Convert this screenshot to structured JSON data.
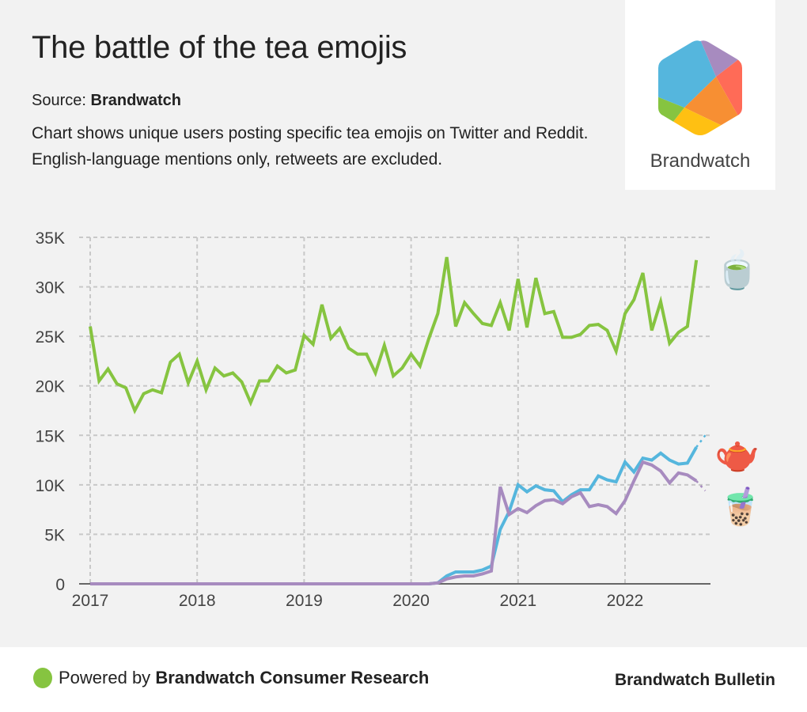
{
  "header": {
    "title": "The battle of the tea emojis",
    "source_label": "Source:",
    "source_name": "Brandwatch",
    "description": "Chart shows unique users posting specific tea emojis on Twitter and Reddit. English-language mentions only, retweets are excluded."
  },
  "logo": {
    "text": "Brandwatch",
    "colors": [
      "#55b6dd",
      "#a78bbf",
      "#ff6b57",
      "#f78f33",
      "#ffc012",
      "#86c440"
    ]
  },
  "footer": {
    "powered_prefix": "Powered by",
    "powered_name": "Brandwatch Consumer Research",
    "brand": "Brandwatch Bulletin",
    "dot_color": "#86c440"
  },
  "chart_data": {
    "type": "line",
    "title": "The battle of the tea emojis",
    "xlabel": "",
    "ylabel": "",
    "x_start": "2017-01",
    "x_step": "month",
    "xticks": [
      "2017",
      "2018",
      "2019",
      "2020",
      "2021",
      "2022"
    ],
    "yticks": [
      "0",
      "5K",
      "10K",
      "15K",
      "20K",
      "25K",
      "30K",
      "35K"
    ],
    "ylim": [
      0,
      35000
    ],
    "grid": true,
    "series": [
      {
        "name": "Teacup without handle",
        "emoji": "🍵",
        "color": "#86c440",
        "values": [
          26000,
          20500,
          21700,
          20200,
          19800,
          17500,
          19200,
          19600,
          19300,
          22400,
          23200,
          20300,
          22500,
          19600,
          21800,
          21000,
          21300,
          20400,
          18300,
          20500,
          20500,
          22000,
          21300,
          21600,
          25100,
          24200,
          28200,
          24800,
          25800,
          23800,
          23200,
          23200,
          21300,
          24100,
          21000,
          21800,
          23200,
          22000,
          24800,
          27300,
          33000,
          26000,
          28400,
          27300,
          26300,
          26100,
          28400,
          25600,
          30800,
          25900,
          30900,
          27300,
          27500,
          24900,
          24900,
          25200,
          26100,
          26200,
          25600,
          23500,
          27300,
          28700,
          31400,
          25600,
          28500,
          24300,
          25400,
          26000,
          32700
        ],
        "projected": []
      },
      {
        "name": "Teapot",
        "emoji": "🫖",
        "color": "#55b6dd",
        "values": [
          0,
          0,
          0,
          0,
          0,
          0,
          0,
          0,
          0,
          0,
          0,
          0,
          0,
          0,
          0,
          0,
          0,
          0,
          0,
          0,
          0,
          0,
          0,
          0,
          0,
          0,
          0,
          0,
          0,
          0,
          0,
          0,
          0,
          0,
          0,
          0,
          0,
          0,
          0,
          100,
          800,
          1200,
          1200,
          1200,
          1400,
          1800,
          5500,
          7300,
          10000,
          9300,
          9900,
          9500,
          9400,
          8300,
          9000,
          9500,
          9500,
          10900,
          10500,
          10300,
          12300,
          11300,
          12700,
          12500,
          13200,
          12500,
          12100,
          12200,
          13800
        ],
        "projected": [
          15000
        ]
      },
      {
        "name": "Bubble tea",
        "emoji": "🧋",
        "color": "#a78bbf",
        "values": [
          0,
          0,
          0,
          0,
          0,
          0,
          0,
          0,
          0,
          0,
          0,
          0,
          0,
          0,
          0,
          0,
          0,
          0,
          0,
          0,
          0,
          0,
          0,
          0,
          0,
          0,
          0,
          0,
          0,
          0,
          0,
          0,
          0,
          0,
          0,
          0,
          0,
          0,
          0,
          100,
          500,
          700,
          800,
          800,
          1000,
          1300,
          9800,
          7000,
          7600,
          7200,
          7900,
          8400,
          8500,
          8100,
          8800,
          9200,
          7800,
          8000,
          7800,
          7100,
          8400,
          10400,
          12300,
          12000,
          11400,
          10200,
          11200,
          11000,
          10400
        ],
        "projected": [
          9400
        ]
      }
    ]
  }
}
